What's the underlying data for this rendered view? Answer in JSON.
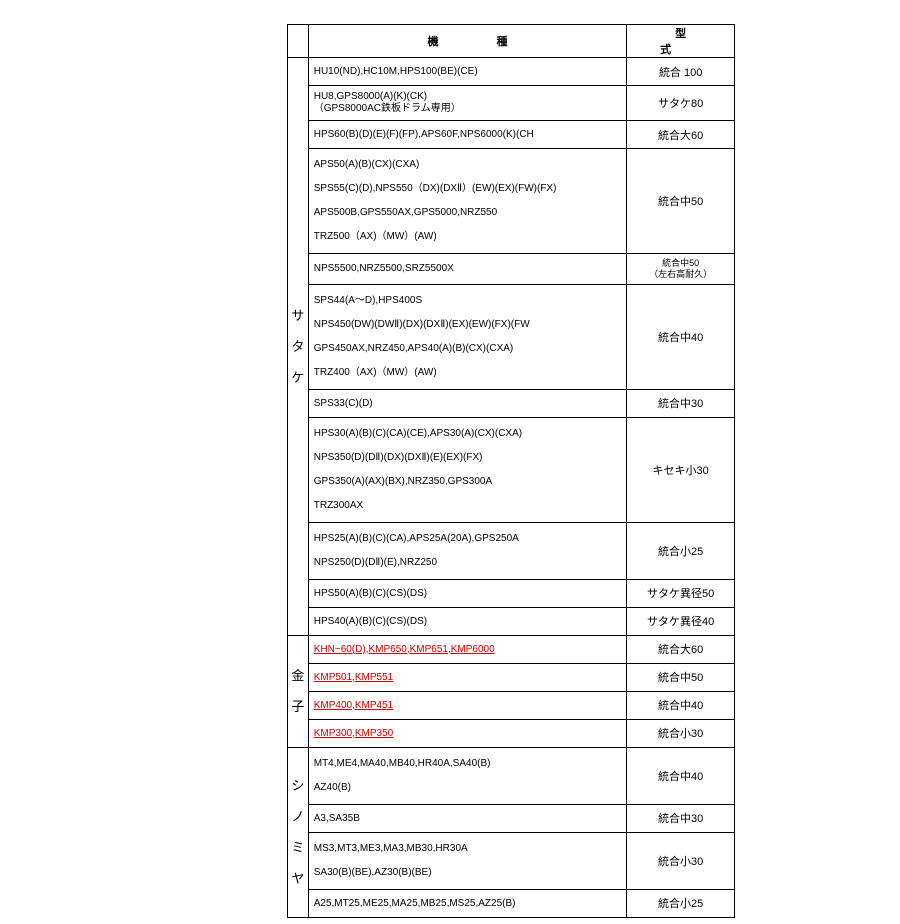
{
  "meta": {
    "text_color": "#000000",
    "link_color": "#cc0000",
    "border_color": "#000000",
    "background": "#ffffff",
    "font_size_body": 10,
    "font_size_header": 11
  },
  "headers": {
    "blank": "",
    "machine": "機種",
    "model": "型式"
  },
  "groups": [
    {
      "maker": "サタケ",
      "rows": [
        {
          "machine": "HU10(ND),HC10M,HPS100(BE)(CE)",
          "model": "統合 100"
        },
        {
          "machine": "HU8,GPS8000(A)(K)(CK)\n（GPS8000AC鉄板ドラム専用）",
          "model": "サタケ80",
          "multiline": true
        },
        {
          "machine": "HPS60(B)(D)(E)(F)(FP),APS60F,NPS6000(K)(CH",
          "model": "統合大60"
        },
        {
          "machine": "APS50(A)(B)(CX)(CXA)\nSPS55(C)(D),NPS550（DX)(DXⅡ）(EW)(EX)(FW)(FX)\nAPS500B,GPS550AX,GPS5000,NRZ550\nTRZ500（AX)（MW）(AW)",
          "model": "統合中50",
          "tall": 4
        },
        {
          "machine": "NPS5500,NRZ5500,SRZ5500X",
          "model": "統合中50\n（左右高耐久）",
          "model_small": true
        },
        {
          "machine": "SPS44(A～D),HPS400S\nNPS450(DW)(DWⅡ)(DX)(DXⅡ)(EX)(EW)(FX)(FW\nGPS450AX,NRZ450,APS40(A)(B)(CX)(CXA)\nTRZ400（AX)（MW）(AW)",
          "model": "統合中40",
          "tall": 4
        },
        {
          "machine": "SPS33(C)(D)",
          "model": "統合中30"
        },
        {
          "machine": "HPS30(A)(B)(C)(CA)(CE),APS30(A)(CX)(CXA)\nNPS350(D)(DⅡ)(DX)(DXⅡ)(E)(EX)(FX)\nGPS350(A)(AX)(BX),NRZ350,GPS300A\nTRZ300AX",
          "model": "キセキ小30",
          "tall": 4
        },
        {
          "machine": "HPS25(A)(B)(C)(CA),APS25A(20A),GPS250A\nNPS250(D)(DⅡ)(E),NRZ250",
          "model": "統合小25",
          "tall": 2
        },
        {
          "machine": "HPS50(A)(B)(C)(CS)(DS)",
          "model": "サタケ異径50"
        },
        {
          "machine": "HPS40(A)(B)(C)(CS)(DS)",
          "model": "サタケ異径40"
        }
      ]
    },
    {
      "maker": "金子",
      "rows": [
        {
          "machine": "KHN−60(D),KMP650,KMP651,KMP6000",
          "model": "統合大60",
          "link": true
        },
        {
          "machine": "KMP501,KMP551",
          "model": "統合中50",
          "link": true
        },
        {
          "machine": "KMP400,KMP451",
          "model": "統合中40",
          "link": true
        },
        {
          "machine": "KMP300,KMP350",
          "model": "統合小30",
          "link": true
        }
      ]
    },
    {
      "maker": "シノミヤ",
      "rows": [
        {
          "machine": "MT4,ME4,MA40,MB40,HR40A,SA40(B)\nAZ40(B)",
          "model": "統合中40",
          "tall": 2
        },
        {
          "machine": "A3,SA35B",
          "model": "統合中30"
        },
        {
          "machine": "MS3,MT3,ME3,MA3,MB30,HR30A\nSA30(B)(BE),AZ30(B)(BE)",
          "model": "統合小30",
          "tall": 2
        },
        {
          "machine": "A25,MT25,ME25,MA25,MB25,MS25,AZ25(B)",
          "model": "統合小25"
        }
      ]
    }
  ]
}
